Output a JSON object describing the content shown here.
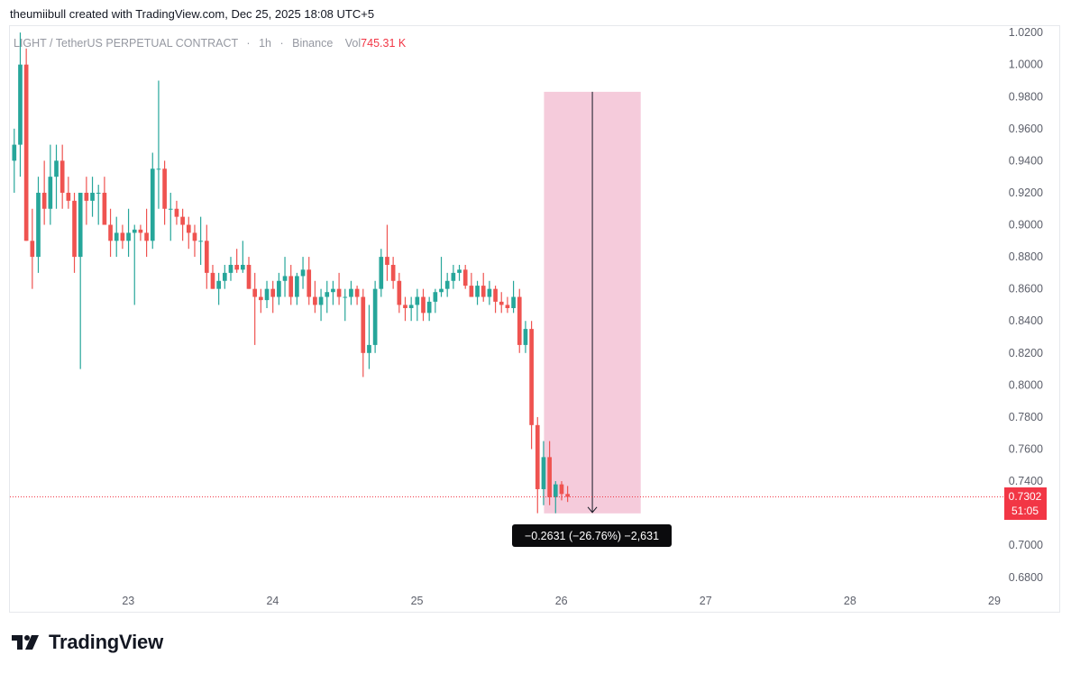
{
  "header": {
    "attribution": "theumiibull created with TradingView.com, Dec 25, 2025 18:08 UTC+5"
  },
  "legend": {
    "symbol": "LIGHT / TetherUS PERPETUAL CONTRACT",
    "dot1": "·",
    "interval": "1h",
    "dot2": "·",
    "exchange": "Binance",
    "vol_label": "Vol",
    "vol_value": "745.31 K"
  },
  "current_price": {
    "price": "0.7302",
    "countdown": "51:05"
  },
  "measure": {
    "label": "−0.2631 (−26.76%) −2,631"
  },
  "brand": {
    "name": "TradingView"
  },
  "colors": {
    "up": "#26a69a",
    "down": "#ef5350",
    "measure_fill": "#f5cbdb",
    "price_line": "#f23645"
  },
  "chart_data": {
    "type": "candlestick",
    "series_label": "LIGHT / TetherUS PERPETUAL CONTRACT",
    "interval": "1h",
    "y_ticks": [
      0.68,
      0.7,
      0.72,
      0.74,
      0.76,
      0.78,
      0.8,
      0.82,
      0.84,
      0.86,
      0.88,
      0.9,
      0.92,
      0.94,
      0.96,
      0.98,
      1.0,
      1.02
    ],
    "y_tick_labels": [
      "0.6800",
      "0.7000",
      "0.7200",
      "0.7400",
      "0.7600",
      "0.7800",
      "0.8000",
      "0.8200",
      "0.8400",
      "0.8600",
      "0.8800",
      "0.9000",
      "0.9200",
      "0.9400",
      "0.9600",
      "0.9800",
      "1.0000",
      "1.0200"
    ],
    "y_range": [
      0.672,
      1.024
    ],
    "x_ticks": [
      {
        "label": "23",
        "day": 23
      },
      {
        "label": "24",
        "day": 24
      },
      {
        "label": "25",
        "day": 25
      },
      {
        "label": "26",
        "day": 26
      },
      {
        "label": "27",
        "day": 27
      },
      {
        "label": "28",
        "day": 28
      },
      {
        "label": "29",
        "day": 29
      }
    ],
    "x_range_days": [
      22.18,
      29.05
    ],
    "first_candle_day": 22.21,
    "candle_step_days": 0.04167,
    "candles": [
      [
        0.94,
        0.96,
        0.92,
        0.95
      ],
      [
        0.95,
        1.02,
        0.93,
        1.0
      ],
      [
        1.0,
        1.01,
        0.89,
        0.89
      ],
      [
        0.89,
        0.91,
        0.86,
        0.88
      ],
      [
        0.88,
        0.93,
        0.87,
        0.92
      ],
      [
        0.92,
        0.94,
        0.9,
        0.91
      ],
      [
        0.91,
        0.95,
        0.9,
        0.93
      ],
      [
        0.93,
        0.95,
        0.91,
        0.94
      ],
      [
        0.94,
        0.95,
        0.91,
        0.92
      ],
      [
        0.92,
        0.93,
        0.91,
        0.915
      ],
      [
        0.915,
        0.92,
        0.87,
        0.88
      ],
      [
        0.88,
        0.92,
        0.81,
        0.92
      ],
      [
        0.92,
        0.93,
        0.9,
        0.915
      ],
      [
        0.915,
        0.93,
        0.905,
        0.92
      ],
      [
        0.92,
        0.925,
        0.9,
        0.92
      ],
      [
        0.92,
        0.93,
        0.9,
        0.9
      ],
      [
        0.9,
        0.91,
        0.88,
        0.89
      ],
      [
        0.89,
        0.905,
        0.88,
        0.895
      ],
      [
        0.895,
        0.9,
        0.885,
        0.89
      ],
      [
        0.89,
        0.91,
        0.88,
        0.895
      ],
      [
        0.895,
        0.9,
        0.85,
        0.897
      ],
      [
        0.897,
        0.9,
        0.89,
        0.895
      ],
      [
        0.895,
        0.91,
        0.88,
        0.89
      ],
      [
        0.89,
        0.945,
        0.885,
        0.935
      ],
      [
        0.935,
        0.99,
        0.91,
        0.935
      ],
      [
        0.935,
        0.94,
        0.9,
        0.91
      ],
      [
        0.91,
        0.92,
        0.89,
        0.91
      ],
      [
        0.91,
        0.915,
        0.9,
        0.905
      ],
      [
        0.905,
        0.91,
        0.89,
        0.9
      ],
      [
        0.9,
        0.905,
        0.885,
        0.895
      ],
      [
        0.895,
        0.9,
        0.88,
        0.89
      ],
      [
        0.89,
        0.905,
        0.875,
        0.89
      ],
      [
        0.89,
        0.9,
        0.86,
        0.87
      ],
      [
        0.87,
        0.875,
        0.86,
        0.86
      ],
      [
        0.86,
        0.87,
        0.85,
        0.865
      ],
      [
        0.865,
        0.875,
        0.86,
        0.87
      ],
      [
        0.87,
        0.88,
        0.865,
        0.875
      ],
      [
        0.875,
        0.885,
        0.87,
        0.872
      ],
      [
        0.872,
        0.89,
        0.87,
        0.875
      ],
      [
        0.875,
        0.88,
        0.86,
        0.86
      ],
      [
        0.86,
        0.87,
        0.825,
        0.855
      ],
      [
        0.855,
        0.86,
        0.845,
        0.853
      ],
      [
        0.853,
        0.865,
        0.848,
        0.86
      ],
      [
        0.86,
        0.865,
        0.845,
        0.855
      ],
      [
        0.855,
        0.87,
        0.85,
        0.865
      ],
      [
        0.865,
        0.88,
        0.855,
        0.868
      ],
      [
        0.868,
        0.875,
        0.85,
        0.855
      ],
      [
        0.855,
        0.87,
        0.85,
        0.868
      ],
      [
        0.868,
        0.88,
        0.86,
        0.872
      ],
      [
        0.872,
        0.88,
        0.85,
        0.855
      ],
      [
        0.855,
        0.865,
        0.845,
        0.85
      ],
      [
        0.85,
        0.86,
        0.84,
        0.855
      ],
      [
        0.855,
        0.865,
        0.845,
        0.858
      ],
      [
        0.858,
        0.865,
        0.85,
        0.86
      ],
      [
        0.86,
        0.87,
        0.85,
        0.855
      ],
      [
        0.855,
        0.86,
        0.84,
        0.855
      ],
      [
        0.855,
        0.865,
        0.85,
        0.86
      ],
      [
        0.86,
        0.862,
        0.85,
        0.855
      ],
      [
        0.855,
        0.86,
        0.805,
        0.82
      ],
      [
        0.82,
        0.85,
        0.81,
        0.825
      ],
      [
        0.825,
        0.865,
        0.82,
        0.86
      ],
      [
        0.86,
        0.885,
        0.855,
        0.88
      ],
      [
        0.88,
        0.9,
        0.865,
        0.875
      ],
      [
        0.875,
        0.88,
        0.86,
        0.865
      ],
      [
        0.865,
        0.87,
        0.845,
        0.85
      ],
      [
        0.85,
        0.855,
        0.84,
        0.848
      ],
      [
        0.848,
        0.855,
        0.84,
        0.85
      ],
      [
        0.85,
        0.86,
        0.84,
        0.855
      ],
      [
        0.855,
        0.86,
        0.84,
        0.845
      ],
      [
        0.845,
        0.855,
        0.84,
        0.852
      ],
      [
        0.852,
        0.86,
        0.845,
        0.858
      ],
      [
        0.858,
        0.88,
        0.855,
        0.86
      ],
      [
        0.86,
        0.87,
        0.855,
        0.865
      ],
      [
        0.865,
        0.875,
        0.86,
        0.87
      ],
      [
        0.87,
        0.875,
        0.865,
        0.872
      ],
      [
        0.872,
        0.875,
        0.86,
        0.862
      ],
      [
        0.862,
        0.87,
        0.855,
        0.855
      ],
      [
        0.855,
        0.865,
        0.85,
        0.862
      ],
      [
        0.862,
        0.87,
        0.852,
        0.855
      ],
      [
        0.855,
        0.865,
        0.85,
        0.86
      ],
      [
        0.86,
        0.862,
        0.845,
        0.852
      ],
      [
        0.852,
        0.858,
        0.845,
        0.85
      ],
      [
        0.85,
        0.855,
        0.845,
        0.848
      ],
      [
        0.848,
        0.865,
        0.845,
        0.855
      ],
      [
        0.855,
        0.86,
        0.82,
        0.825
      ],
      [
        0.825,
        0.84,
        0.82,
        0.835
      ],
      [
        0.835,
        0.84,
        0.76,
        0.775
      ],
      [
        0.775,
        0.78,
        0.72,
        0.735
      ],
      [
        0.735,
        0.765,
        0.725,
        0.755
      ],
      [
        0.755,
        0.765,
        0.725,
        0.73
      ],
      [
        0.73,
        0.74,
        0.72,
        0.738
      ],
      [
        0.738,
        0.74,
        0.728,
        0.732
      ],
      [
        0.732,
        0.737,
        0.727,
        0.7302
      ]
    ],
    "current_price": 0.7302,
    "measure": {
      "from_day": 25.88,
      "to_day": 26.55,
      "top": 0.983,
      "bottom": 0.7199,
      "change": -0.2631,
      "change_pct": -26.76,
      "ticks": -2631
    }
  }
}
